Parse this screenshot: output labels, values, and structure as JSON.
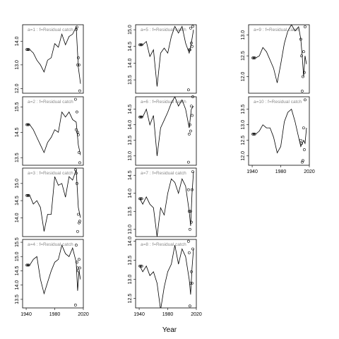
{
  "chart_data": {
    "type": "line",
    "title": "",
    "xlabel": "Year",
    "ylabel": "",
    "xlim": [
      1935,
      2020
    ],
    "x_ticks": [
      1940,
      1980,
      2020
    ],
    "grid": false,
    "panels": [
      {
        "label": "a=1  :  f=Residual catch",
        "col": 0,
        "row": 0,
        "ylim": [
          11.8,
          14.7
        ],
        "yticks": [
          12.0,
          13.0,
          14.0
        ],
        "x": [
          1941,
          1945,
          1950,
          1955,
          1960,
          1965,
          1970,
          1975,
          1980,
          1985,
          1990,
          1995,
          2000,
          2005,
          2010,
          2013,
          2016
        ],
        "y": [
          13.65,
          13.65,
          13.5,
          13.2,
          13.0,
          12.7,
          13.2,
          13.3,
          13.9,
          13.75,
          14.3,
          13.85,
          14.2,
          14.3,
          14.6,
          12.9,
          12.2
        ],
        "obs_x": [
          2010,
          2011,
          2012,
          2013,
          2014,
          2015
        ],
        "obs_y": [
          14.5,
          14.6,
          13.0,
          13.3,
          13.0,
          11.9
        ]
      },
      {
        "label": "a=2  :  f=Residual catch",
        "col": 0,
        "row": 1,
        "ylim": [
          13.2,
          15.9
        ],
        "yticks": [
          13.5,
          14.5,
          15.5
        ],
        "x": [
          1941,
          1945,
          1950,
          1955,
          1960,
          1965,
          1970,
          1975,
          1980,
          1985,
          1990,
          1995,
          2000,
          2005,
          2010,
          2013,
          2016
        ],
        "y": [
          14.8,
          14.8,
          14.6,
          14.3,
          14.0,
          13.7,
          14.1,
          14.3,
          14.6,
          14.5,
          15.3,
          15.1,
          15.3,
          15.0,
          14.9,
          14.0,
          13.6
        ],
        "obs_x": [
          2009,
          2010,
          2011,
          2012,
          2013,
          2014,
          2015
        ],
        "obs_y": [
          15.8,
          14.6,
          15.3,
          14.5,
          14.4,
          13.7,
          13.3
        ]
      },
      {
        "label": "a=3  :  f=Residual catch",
        "col": 0,
        "row": 2,
        "ylim": [
          13.45,
          15.45
        ],
        "yticks": [
          14.0,
          14.5,
          15.0
        ],
        "x": [
          1941,
          1945,
          1950,
          1955,
          1960,
          1965,
          1970,
          1975,
          1980,
          1985,
          1990,
          1995,
          2000,
          2005,
          2010,
          2013,
          2016
        ],
        "y": [
          14.65,
          14.65,
          14.4,
          14.5,
          14.3,
          13.6,
          14.1,
          14.1,
          15.2,
          14.95,
          15.0,
          14.6,
          15.2,
          15.1,
          15.4,
          14.3,
          14.0
        ],
        "obs_x": [
          2009,
          2010,
          2011,
          2012,
          2013,
          2014,
          2015
        ],
        "obs_y": [
          15.4,
          15.3,
          15.0,
          13.6,
          14.1,
          13.85,
          13.9
        ]
      },
      {
        "label": "a=4  :  f=Residual catch",
        "col": 0,
        "row": 3,
        "ylim": [
          13.2,
          15.6
        ],
        "yticks": [
          13.5,
          14.0,
          14.5,
          15.0,
          15.5
        ],
        "x": [
          1941,
          1945,
          1950,
          1955,
          1960,
          1965,
          1970,
          1975,
          1980,
          1985,
          1990,
          1995,
          2000,
          2005,
          2010,
          2012,
          2014,
          2016
        ],
        "y": [
          14.7,
          14.7,
          14.9,
          15.0,
          14.2,
          13.7,
          14.1,
          14.5,
          14.8,
          14.9,
          15.4,
          15.1,
          15.0,
          15.3,
          14.8,
          13.8,
          14.5,
          14.2
        ],
        "obs_x": [
          2009,
          2010,
          2011,
          2012,
          2013,
          2014,
          2015
        ],
        "obs_y": [
          13.3,
          15.4,
          14.8,
          14.6,
          14.5,
          14.9,
          14.6
        ]
      },
      {
        "label": "a=5  :  f=Residual catch",
        "col": 1,
        "row": 0,
        "ylim": [
          13.1,
          15.15
        ],
        "yticks": [
          13.5,
          14.0,
          14.5,
          15.0
        ],
        "x": [
          1941,
          1945,
          1950,
          1955,
          1960,
          1965,
          1970,
          1975,
          1980,
          1985,
          1990,
          1995,
          2000,
          2005,
          2010,
          2013,
          2016
        ],
        "y": [
          14.55,
          14.55,
          14.65,
          14.2,
          14.4,
          13.3,
          14.3,
          14.45,
          14.3,
          14.8,
          15.1,
          14.9,
          15.1,
          14.6,
          14.3,
          14.6,
          15.0
        ],
        "obs_x": [
          2009,
          2010,
          2011,
          2012,
          2013,
          2014,
          2015
        ],
        "obs_y": [
          13.2,
          14.4,
          14.4,
          15.05,
          14.6,
          14.5,
          15.1
        ]
      },
      {
        "label": "a=6  :  f=Residual catch",
        "col": 1,
        "row": 1,
        "ylim": [
          12.7,
          14.9
        ],
        "yticks": [
          13.0,
          13.5,
          14.0,
          14.5
        ],
        "x": [
          1941,
          1945,
          1950,
          1955,
          1960,
          1965,
          1970,
          1975,
          1980,
          1985,
          1990,
          1995,
          2000,
          2005,
          2010,
          2013,
          2016
        ],
        "y": [
          14.25,
          14.25,
          14.5,
          14.0,
          14.3,
          13.0,
          13.9,
          14.15,
          14.4,
          14.7,
          14.9,
          14.6,
          14.8,
          14.5,
          13.9,
          14.5,
          14.6
        ],
        "obs_x": [
          2009,
          2010,
          2011,
          2012,
          2013,
          2014,
          2015
        ],
        "obs_y": [
          12.8,
          13.7,
          14.0,
          13.8,
          14.6,
          14.3,
          14.9
        ]
      },
      {
        "label": "a=7  :  f=Residual catch",
        "col": 1,
        "row": 2,
        "ylim": [
          12.8,
          14.7
        ],
        "yticks": [
          13.0,
          13.5,
          14.0,
          14.5
        ],
        "x": [
          1941,
          1945,
          1950,
          1955,
          1960,
          1965,
          1970,
          1975,
          1980,
          1985,
          1990,
          1995,
          2000,
          2005,
          2010,
          2012,
          2014,
          2016
        ],
        "y": [
          13.85,
          13.7,
          13.9,
          13.7,
          13.6,
          12.8,
          13.6,
          13.4,
          14.0,
          14.4,
          14.3,
          14.0,
          14.4,
          14.2,
          13.5,
          13.1,
          14.0,
          14.6
        ],
        "obs_x": [
          2009,
          2010,
          2011,
          2012,
          2013,
          2014,
          2015
        ],
        "obs_y": [
          14.1,
          13.5,
          13.0,
          13.5,
          13.2,
          14.1,
          14.6
        ]
      },
      {
        "label": "a=8  :  f=Residual catch",
        "col": 1,
        "row": 3,
        "ylim": [
          12.25,
          14.05
        ],
        "yticks": [
          12.5,
          13.0,
          13.5,
          14.0
        ],
        "x": [
          1941,
          1945,
          1950,
          1955,
          1960,
          1965,
          1970,
          1975,
          1980,
          1985,
          1990,
          1995,
          2000,
          2005,
          2010,
          2012,
          2014,
          2016
        ],
        "y": [
          13.35,
          13.2,
          13.35,
          13.1,
          13.2,
          12.9,
          12.2,
          12.8,
          13.2,
          13.4,
          13.9,
          13.4,
          13.8,
          13.6,
          13.0,
          12.6,
          13.3,
          13.8
        ],
        "obs_x": [
          2009,
          2010,
          2011,
          2012,
          2013,
          2014,
          2015
        ],
        "obs_y": [
          14.0,
          13.7,
          12.3,
          12.9,
          13.2,
          12.9,
          13.8
        ]
      },
      {
        "label": "a=9  :  f=Residual catch",
        "col": 2,
        "row": 0,
        "ylim": [
          11.6,
          13.25
        ],
        "yticks": [
          12.0,
          12.5,
          13.0
        ],
        "x": [
          1941,
          1945,
          1950,
          1955,
          1960,
          1965,
          1970,
          1975,
          1980,
          1985,
          1990,
          1995,
          2000,
          2005,
          2008,
          2010,
          2012,
          2014,
          2016
        ],
        "y": [
          12.45,
          12.45,
          12.5,
          12.7,
          12.6,
          12.4,
          12.2,
          11.85,
          12.3,
          12.8,
          13.1,
          13.25,
          13.1,
          13.2,
          12.9,
          12.5,
          12.0,
          12.5,
          12.3
        ],
        "obs_x": [
          2008,
          2009,
          2010,
          2011,
          2012,
          2013,
          2014
        ],
        "obs_y": [
          12.9,
          12.5,
          11.65,
          12.0,
          12.6,
          12.1,
          13.2
        ]
      },
      {
        "label": "a=10  :  f=Residual catch",
        "col": 2,
        "row": 1,
        "ylim": [
          11.7,
          13.9
        ],
        "yticks": [
          12.0,
          12.5,
          13.0,
          13.5
        ],
        "x": [
          1941,
          1945,
          1950,
          1955,
          1960,
          1965,
          1970,
          1975,
          1980,
          1985,
          1990,
          1995,
          2000,
          2005,
          2008,
          2010,
          2012,
          2014,
          2016
        ],
        "y": [
          12.7,
          12.7,
          12.8,
          13.0,
          12.9,
          12.9,
          12.6,
          12.1,
          12.3,
          13.1,
          13.4,
          13.5,
          13.1,
          12.6,
          12.3,
          12.4,
          12.5,
          12.4,
          12.9
        ],
        "obs_x": [
          2008,
          2009,
          2010,
          2011,
          2012,
          2013,
          2014
        ],
        "obs_y": [
          12.5,
          12.4,
          11.8,
          11.85,
          12.9,
          12.2,
          13.8
        ]
      }
    ]
  }
}
